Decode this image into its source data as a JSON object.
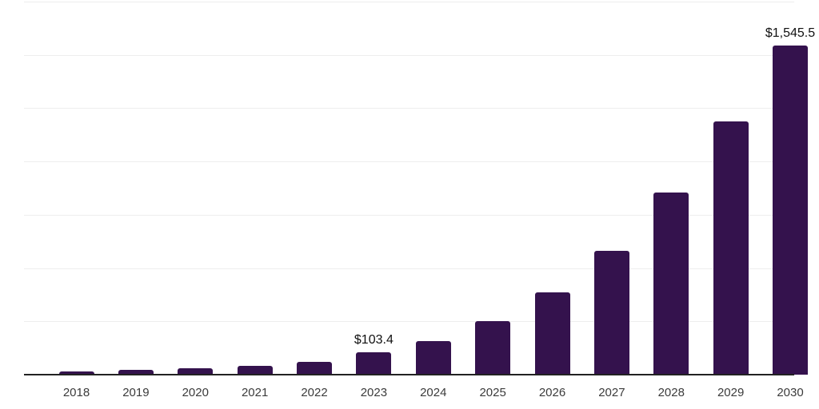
{
  "chart_data": {
    "type": "bar",
    "title": "",
    "xlabel": "",
    "ylabel": "",
    "categories": [
      "2018",
      "2019",
      "2020",
      "2021",
      "2022",
      "2023",
      "2024",
      "2025",
      "2026",
      "2027",
      "2028",
      "2029",
      "2030"
    ],
    "values": [
      14,
      22,
      31,
      41,
      60,
      103.4,
      158,
      250,
      387,
      580,
      854,
      1189,
      1545.5
    ],
    "data_labels": {
      "2023": "$103.4",
      "2030": "$1,545.5"
    },
    "ylim": [
      0,
      1750
    ],
    "gridline_interval": 250,
    "grid": "horizontal-only",
    "legend_position": "none",
    "colors": {
      "bar": "#34124D",
      "gridline": "#EEEEEE",
      "axis_line": "#222222",
      "tick_label": "#3B3B3B",
      "data_label": "#111111",
      "background": "#FFFFFF"
    }
  }
}
